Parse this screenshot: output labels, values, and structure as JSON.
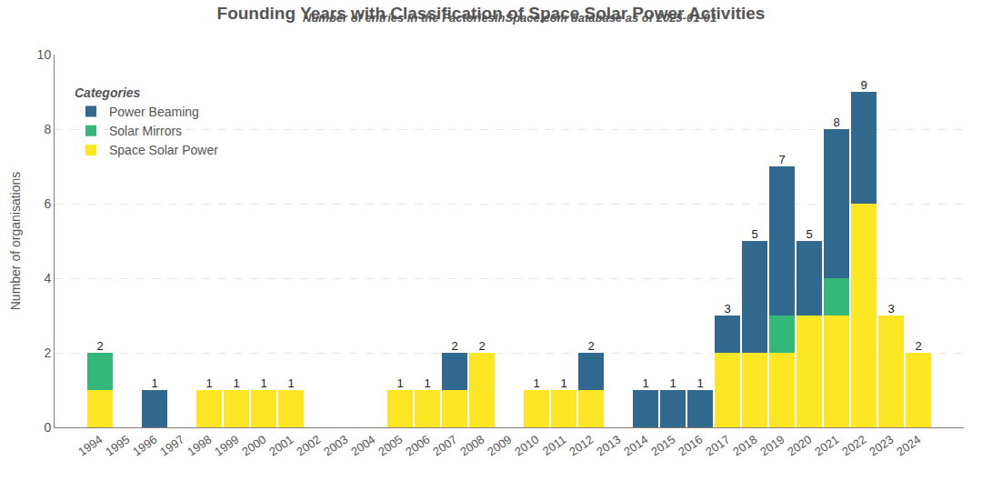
{
  "chart_data": {
    "type": "bar",
    "title": "Founding Years with Classification of Space Solar Power Activities",
    "subtitle": "Number of entries in the FactoriesInSpace.com database as of 2025-01-01",
    "y_label": "Number of organisations",
    "legend_title": "Categories",
    "legend": "upper left",
    "stacked": true,
    "grid": true,
    "categories": [
      "1994",
      "1995",
      "1996",
      "1997",
      "1998",
      "1999",
      "2000",
      "2001",
      "2002",
      "2003",
      "2004",
      "2005",
      "2006",
      "2007",
      "2008",
      "2009",
      "2010",
      "2011",
      "2012",
      "2013",
      "2014",
      "2015",
      "2016",
      "2017",
      "2018",
      "2019",
      "2020",
      "2021",
      "2022",
      "2023",
      "2024"
    ],
    "series": [
      {
        "name": "Space Solar Power",
        "color": "#fde725",
        "values": [
          1,
          0,
          0,
          0,
          1,
          1,
          1,
          1,
          0,
          0,
          0,
          1,
          1,
          1,
          2,
          0,
          1,
          1,
          1,
          0,
          0,
          0,
          0,
          2,
          2,
          2,
          3,
          3,
          6,
          3,
          2
        ]
      },
      {
        "name": "Solar Mirrors",
        "color": "#35b779",
        "values": [
          1,
          0,
          0,
          0,
          0,
          0,
          0,
          0,
          0,
          0,
          0,
          0,
          0,
          0,
          0,
          0,
          0,
          0,
          0,
          0,
          0,
          0,
          0,
          0,
          0,
          1,
          0,
          1,
          0,
          0,
          0
        ]
      },
      {
        "name": "Power Beaming",
        "color": "#31688e",
        "values": [
          0,
          0,
          1,
          0,
          0,
          0,
          0,
          0,
          0,
          0,
          0,
          0,
          0,
          1,
          0,
          0,
          0,
          0,
          1,
          0,
          1,
          1,
          1,
          1,
          3,
          4,
          2,
          4,
          3,
          0,
          0
        ]
      }
    ],
    "totals": [
      2,
      null,
      1,
      null,
      1,
      1,
      1,
      1,
      null,
      null,
      null,
      1,
      1,
      2,
      2,
      null,
      1,
      1,
      2,
      null,
      1,
      1,
      1,
      3,
      5,
      7,
      5,
      8,
      9,
      3,
      2
    ],
    "ylim": [
      0,
      10
    ],
    "yticks": [
      0,
      2,
      4,
      6,
      8,
      10
    ]
  }
}
